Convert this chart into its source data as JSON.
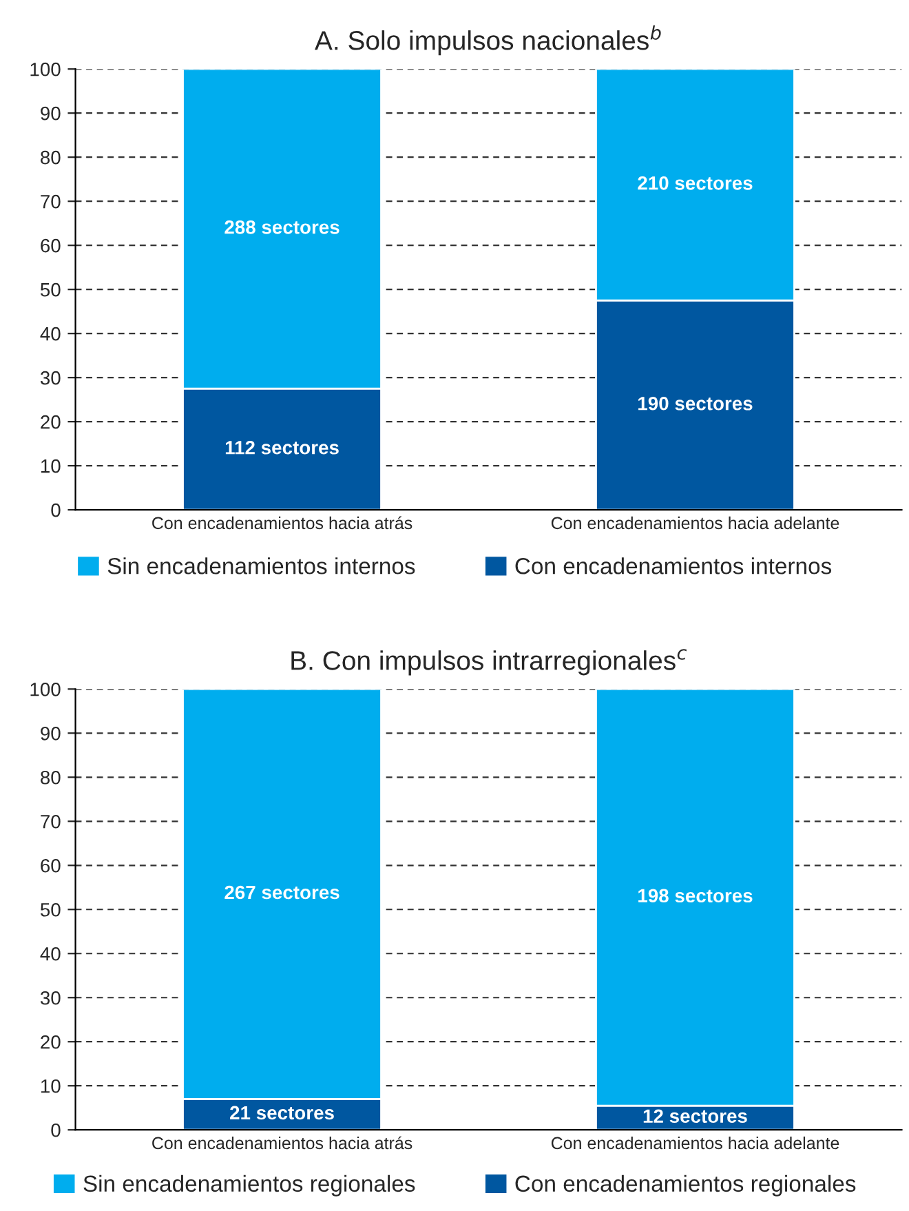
{
  "chart_data": [
    {
      "type": "bar",
      "title": "A. Solo impulsos nacionales$^{b}$",
      "stacked": true,
      "categories": [
        "Con encadenamientos hacia atrás",
        "Con encadenamientos hacia adelante"
      ],
      "ylim": [
        0,
        100
      ],
      "yticks": [
        0,
        10,
        20,
        30,
        40,
        50,
        60,
        70,
        80,
        90,
        100
      ],
      "grid": "y",
      "legend": "bottom",
      "series": [
        {
          "name": "Con encadenamientos internos",
          "color": "#0057a0",
          "values": [
            27.5,
            47.5
          ]
        },
        {
          "name": "Sin encadenamientos internos",
          "color": "#00adee",
          "values": [
            72.5,
            52.5
          ]
        }
      ],
      "annotations": [
        "112 sectores",
        "190 sectores",
        "288 sectores",
        "210 sectores"
      ]
    },
    {
      "type": "bar",
      "title": "B. Con impulsos intrarregionales$^{c}$",
      "stacked": true,
      "categories": [
        "Con encadenamientos hacia atrás",
        "Con encadenamientos hacia adelante"
      ],
      "ylim": [
        0,
        100
      ],
      "yticks": [
        0,
        10,
        20,
        30,
        40,
        50,
        60,
        70,
        80,
        90,
        100
      ],
      "grid": "y",
      "legend": "bottom",
      "series": [
        {
          "name": "Con encadenamientos regionales",
          "color": "#0057a0",
          "values": [
            7,
            5.5
          ]
        },
        {
          "name": "Sin encadenamientos regionales",
          "color": "#00adee",
          "values": [
            93,
            94.5
          ]
        }
      ],
      "annotations": [
        "21 sectores",
        "12 sectores",
        "267 sectores",
        "198 sectores"
      ]
    }
  ]
}
